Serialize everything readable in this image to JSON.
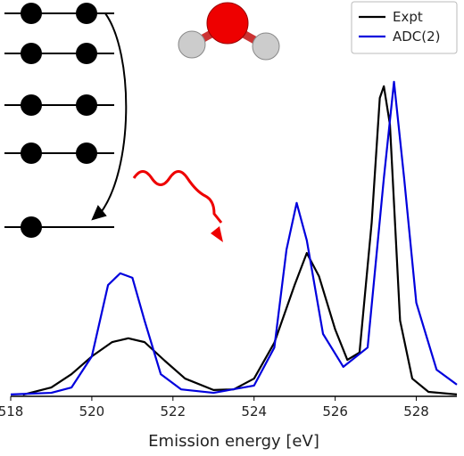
{
  "chart_data": {
    "type": "line",
    "xlabel": "Emission energy [eV]",
    "xlim": [
      518,
      529
    ],
    "xticks": [
      518,
      520,
      522,
      524,
      526,
      528
    ],
    "ylim": [
      0,
      1.25
    ],
    "legend": "upper right",
    "series": [
      {
        "name": "Expt",
        "color": "#000000",
        "x": [
          518.3,
          519,
          519.5,
          520,
          520.5,
          520.9,
          521.3,
          521.8,
          522.3,
          523,
          523.5,
          524,
          524.5,
          525,
          525.3,
          525.6,
          526,
          526.3,
          526.6,
          526.9,
          527.1,
          527.2,
          527.35,
          527.6,
          527.9,
          528.3,
          529
        ],
        "values": [
          0.005,
          0.028,
          0.07,
          0.126,
          0.171,
          0.183,
          0.171,
          0.112,
          0.056,
          0.02,
          0.022,
          0.056,
          0.169,
          0.351,
          0.452,
          0.379,
          0.211,
          0.115,
          0.138,
          0.548,
          0.941,
          0.978,
          0.857,
          0.239,
          0.056,
          0.014,
          0.006
        ]
      },
      {
        "name": "ADC(2)",
        "color": "#0000dd",
        "x": [
          518,
          519,
          519.5,
          520,
          520.4,
          520.7,
          521,
          521.3,
          521.7,
          522.2,
          523,
          524,
          524.5,
          524.8,
          525.05,
          525.3,
          525.7,
          526.2,
          526.8,
          527.2,
          527.45,
          527.7,
          528,
          528.5,
          529
        ],
        "values": [
          0.006,
          0.011,
          0.028,
          0.126,
          0.351,
          0.388,
          0.374,
          0.239,
          0.07,
          0.022,
          0.011,
          0.034,
          0.154,
          0.463,
          0.61,
          0.492,
          0.197,
          0.093,
          0.154,
          0.688,
          0.992,
          0.688,
          0.295,
          0.084,
          0.037
        ]
      }
    ]
  }
}
